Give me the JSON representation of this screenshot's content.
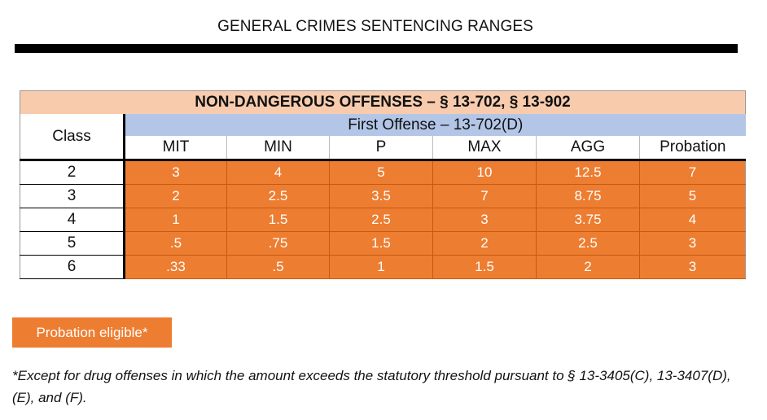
{
  "title": "GENERAL CRIMES SENTENCING RANGES",
  "table": {
    "heading": "NON-DANGEROUS OFFENSES – § 13-702, § 13-902",
    "class_label": "Class",
    "subheading": "First Offense – 13-702(D)",
    "columns": [
      "MIT",
      "MIN",
      "P",
      "MAX",
      "AGG",
      "Probation"
    ],
    "rows": [
      {
        "class": "2",
        "values": [
          "3",
          "4",
          "5",
          "10",
          "12.5",
          "7"
        ]
      },
      {
        "class": "3",
        "values": [
          "2",
          "2.5",
          "3.5",
          "7",
          "8.75",
          "5"
        ]
      },
      {
        "class": "4",
        "values": [
          "1",
          "1.5",
          "2.5",
          "3",
          "3.75",
          "4"
        ]
      },
      {
        "class": "5",
        "values": [
          ".5",
          ".75",
          "1.5",
          "2",
          "2.5",
          "3"
        ]
      },
      {
        "class": "6",
        "values": [
          ".33",
          ".5",
          "1",
          "1.5",
          "2",
          "3"
        ]
      }
    ]
  },
  "legend": {
    "label": "Probation eligible*",
    "color": "#ed7d31"
  },
  "footnote": "*Except for drug offenses in which the amount exceeds the statutory threshold pursuant to § 13-3405(C), 13-3407(D), (E), and (F).",
  "colors": {
    "heading_bg": "#f8cbad",
    "subheading_bg": "#b4c6e7",
    "eligible_bg": "#ed7d31"
  }
}
